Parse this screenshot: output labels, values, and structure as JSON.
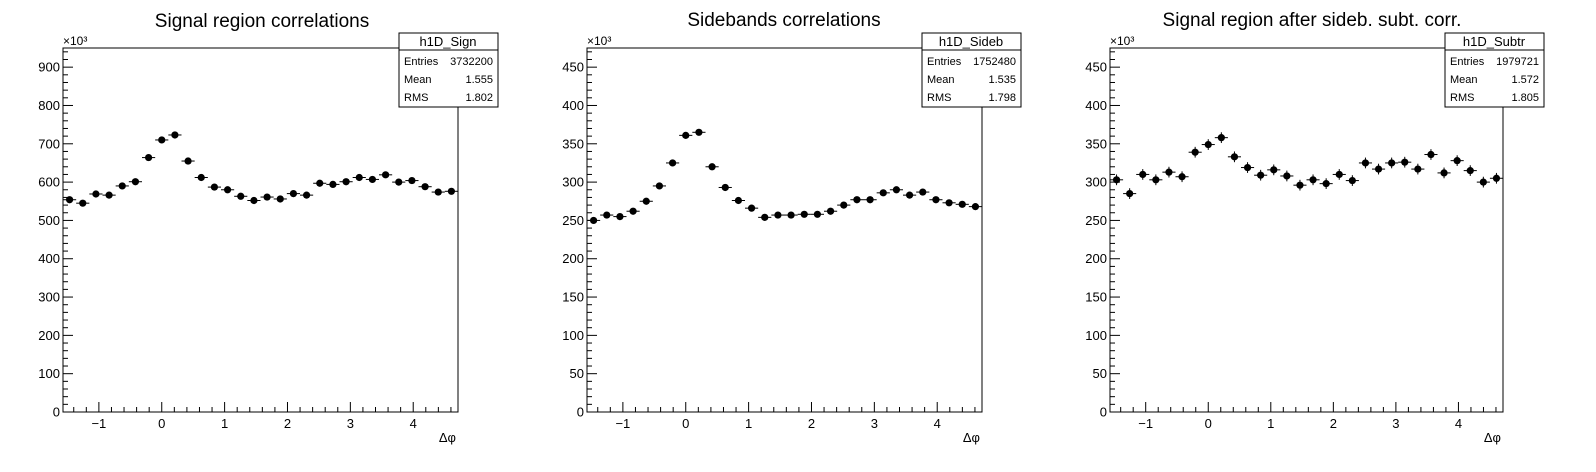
{
  "chart_data": [
    {
      "type": "scatter",
      "title": "Signal region correlations",
      "xlabel": "Δφ",
      "ylabel": "",
      "y_multiplier_label": "×10³",
      "y_multiplier": 1000,
      "xlim": [
        -1.5708,
        4.7124
      ],
      "ylim": [
        0,
        950000
      ],
      "x_ticks": [
        -1,
        0,
        1,
        2,
        3,
        4
      ],
      "y_ticks": [
        0,
        100000,
        200000,
        300000,
        400000,
        500000,
        600000,
        700000,
        800000,
        900000
      ],
      "y_tick_labels": [
        "0",
        "100",
        "200",
        "300",
        "400",
        "500",
        "600",
        "700",
        "800",
        "900"
      ],
      "stats": {
        "name": "h1D_Sign",
        "rows": [
          [
            "Entries",
            "3732200"
          ],
          [
            "Mean",
            "1.555"
          ],
          [
            "RMS",
            "1.802"
          ]
        ]
      },
      "series": [
        {
          "x": [
            -1.4661,
            -1.2566,
            -1.0472,
            -0.8378,
            -0.6283,
            -0.4189,
            -0.2094,
            0.0,
            0.2094,
            0.4189,
            0.6283,
            0.8378,
            1.0472,
            1.2566,
            1.4661,
            1.6755,
            1.885,
            2.0944,
            2.3038,
            2.5133,
            2.7227,
            2.9322,
            3.1416,
            3.351,
            3.5605,
            3.7699,
            3.9794,
            4.1888,
            4.3982,
            4.6077
          ],
          "y": [
            554000,
            545000,
            569000,
            566000,
            590000,
            601000,
            664000,
            710000,
            723000,
            655000,
            612000,
            587000,
            580000,
            563000,
            552000,
            561000,
            556000,
            570000,
            566000,
            597000,
            594000,
            601000,
            612000,
            607000,
            619000,
            600000,
            604000,
            588000,
            574000,
            576000
          ],
          "yerr": [
            2000,
            2000,
            2000,
            2000,
            2000,
            2000,
            2000,
            2000,
            2000,
            2000,
            2000,
            2000,
            2000,
            2000,
            2000,
            2000,
            2000,
            2000,
            2000,
            2000,
            2000,
            2000,
            2000,
            2000,
            2000,
            2000,
            2000,
            2000,
            2000,
            2000
          ]
        }
      ]
    },
    {
      "type": "scatter",
      "title": "Sidebands correlations",
      "xlabel": "Δφ",
      "ylabel": "",
      "y_multiplier_label": "×10³",
      "y_multiplier": 1000,
      "xlim": [
        -1.5708,
        4.7124
      ],
      "ylim": [
        0,
        475000
      ],
      "x_ticks": [
        -1,
        0,
        1,
        2,
        3,
        4
      ],
      "y_ticks": [
        0,
        50000,
        100000,
        150000,
        200000,
        250000,
        300000,
        350000,
        400000,
        450000
      ],
      "y_tick_labels": [
        "0",
        "50",
        "100",
        "150",
        "200",
        "250",
        "300",
        "350",
        "400",
        "450"
      ],
      "stats": {
        "name": "h1D_Sideb",
        "rows": [
          [
            "Entries",
            "1752480"
          ],
          [
            "Mean",
            "1.535"
          ],
          [
            "RMS",
            "1.798"
          ]
        ]
      },
      "series": [
        {
          "x": [
            -1.4661,
            -1.2566,
            -1.0472,
            -0.8378,
            -0.6283,
            -0.4189,
            -0.2094,
            0.0,
            0.2094,
            0.4189,
            0.6283,
            0.8378,
            1.0472,
            1.2566,
            1.4661,
            1.6755,
            1.885,
            2.0944,
            2.3038,
            2.5133,
            2.7227,
            2.9322,
            3.1416,
            3.351,
            3.5605,
            3.7699,
            3.9794,
            4.1888,
            4.3982,
            4.6077
          ],
          "y": [
            250000,
            257000,
            255000,
            262000,
            275000,
            295000,
            325000,
            361000,
            365000,
            320000,
            293000,
            276000,
            266000,
            254000,
            257000,
            257000,
            258000,
            258000,
            262000,
            270000,
            277000,
            277000,
            286000,
            290000,
            283000,
            287000,
            277000,
            273000,
            271000,
            268000
          ],
          "yerr": [
            1200,
            1200,
            1200,
            1200,
            1200,
            1200,
            1200,
            1200,
            1200,
            1200,
            1200,
            1200,
            1200,
            1200,
            1200,
            1200,
            1200,
            1200,
            1200,
            1200,
            1200,
            1200,
            1200,
            1200,
            1200,
            1200,
            1200,
            1200,
            1200,
            1200
          ]
        }
      ]
    },
    {
      "type": "scatter",
      "title": "Signal region after sideb. subt. corr.",
      "xlabel": "Δφ",
      "ylabel": "",
      "y_multiplier_label": "×10³",
      "y_multiplier": 1000,
      "xlim": [
        -1.5708,
        4.7124
      ],
      "ylim": [
        0,
        475000
      ],
      "x_ticks": [
        -1,
        0,
        1,
        2,
        3,
        4
      ],
      "y_ticks": [
        0,
        50000,
        100000,
        150000,
        200000,
        250000,
        300000,
        350000,
        400000,
        450000
      ],
      "y_tick_labels": [
        "0",
        "50",
        "100",
        "150",
        "200",
        "250",
        "300",
        "350",
        "400",
        "450"
      ],
      "stats": {
        "name": "h1D_Subtr",
        "rows": [
          [
            "Entries",
            "1979721"
          ],
          [
            "Mean",
            "1.572"
          ],
          [
            "RMS",
            "1.805"
          ]
        ]
      },
      "series": [
        {
          "x": [
            -1.4661,
            -1.2566,
            -1.0472,
            -0.8378,
            -0.6283,
            -0.4189,
            -0.2094,
            0.0,
            0.2094,
            0.4189,
            0.6283,
            0.8378,
            1.0472,
            1.2566,
            1.4661,
            1.6755,
            1.885,
            2.0944,
            2.3038,
            2.5133,
            2.7227,
            2.9322,
            3.1416,
            3.351,
            3.5605,
            3.7699,
            3.9794,
            4.1888,
            4.3982,
            4.6077
          ],
          "y": [
            303000,
            285000,
            310000,
            303000,
            313000,
            307000,
            339000,
            349000,
            358000,
            333000,
            319000,
            309000,
            316000,
            308000,
            296000,
            303000,
            298000,
            310000,
            302000,
            325000,
            317000,
            325000,
            326000,
            317000,
            336000,
            312000,
            328000,
            315000,
            300000,
            305000
          ],
          "yerr": [
            7000,
            7000,
            7000,
            7000,
            7000,
            7000,
            7000,
            7000,
            7000,
            7000,
            7000,
            7000,
            7000,
            7000,
            7000,
            7000,
            7000,
            7000,
            7000,
            7000,
            7000,
            7000,
            7000,
            7000,
            7000,
            7000,
            7000,
            7000,
            7000,
            7000
          ]
        }
      ]
    }
  ]
}
